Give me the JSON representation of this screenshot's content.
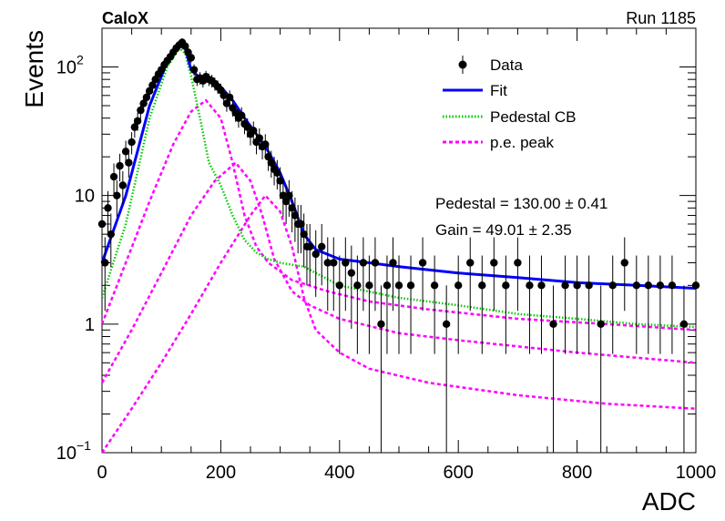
{
  "header": {
    "experiment": "CaloX",
    "run": "Run 1185"
  },
  "fit_results": {
    "pedestal": "Pedestal = 130.00 ± 0.41",
    "gain": "Gain = 49.01 ± 2.35"
  },
  "chart_data": {
    "type": "scatter",
    "title": "",
    "xlabel": "ADC",
    "ylabel": "Events",
    "xlim": [
      0,
      1000
    ],
    "ylim": [
      0.1,
      200
    ],
    "y_scale": "log",
    "x_ticks": [
      0,
      200,
      400,
      600,
      800,
      1000
    ],
    "y_ticks": [
      {
        "value": 0.1,
        "base": "10",
        "exp": "−1"
      },
      {
        "value": 1,
        "base": "1",
        "exp": ""
      },
      {
        "value": 10,
        "base": "10",
        "exp": ""
      },
      {
        "value": 100,
        "base": "10",
        "exp": "2"
      }
    ],
    "legend": {
      "placement": "top-right",
      "entries": [
        {
          "name": "Data",
          "style": "marker",
          "color": "#000000"
        },
        {
          "name": "Fit",
          "style": "solid",
          "color": "#0000ff"
        },
        {
          "name": "Pedestal CB",
          "style": "dotted",
          "color": "#00cc00"
        },
        {
          "name": "p.e. peak",
          "style": "dashed",
          "color": "#ff00ff"
        }
      ]
    },
    "data_points": {
      "x": [
        0,
        5,
        10,
        15,
        20,
        25,
        30,
        35,
        40,
        45,
        50,
        55,
        60,
        65,
        70,
        75,
        80,
        85,
        90,
        95,
        100,
        105,
        110,
        115,
        120,
        125,
        130,
        135,
        140,
        145,
        150,
        155,
        160,
        165,
        170,
        175,
        180,
        185,
        190,
        195,
        200,
        205,
        210,
        215,
        220,
        225,
        230,
        235,
        240,
        245,
        250,
        255,
        260,
        265,
        270,
        275,
        280,
        285,
        290,
        295,
        300,
        305,
        310,
        315,
        320,
        325,
        330,
        335,
        340,
        345,
        350,
        360,
        370,
        380,
        390,
        400,
        410,
        420,
        430,
        440,
        450,
        460,
        470,
        480,
        490,
        500,
        520,
        540,
        560,
        580,
        600,
        620,
        640,
        660,
        680,
        700,
        720,
        740,
        760,
        780,
        800,
        820,
        840,
        860,
        880,
        900,
        920,
        940,
        960,
        980,
        1000
      ],
      "y": [
        6,
        3,
        8,
        5,
        14,
        10,
        17,
        12,
        22,
        18,
        26,
        34,
        38,
        46,
        52,
        58,
        65,
        72,
        80,
        88,
        95,
        104,
        112,
        120,
        130,
        140,
        148,
        155,
        145,
        130,
        118,
        95,
        80,
        82,
        78,
        84,
        80,
        78,
        74,
        70,
        66,
        60,
        52,
        58,
        48,
        44,
        40,
        42,
        36,
        34,
        30,
        32,
        26,
        28,
        24,
        25,
        20,
        18,
        16,
        15,
        13,
        10,
        9,
        10,
        8,
        7,
        6,
        6,
        5,
        4,
        4,
        3.5,
        4,
        3,
        3,
        2,
        3,
        2.5,
        2,
        3,
        2,
        3,
        1,
        2,
        3,
        2,
        2,
        3,
        2,
        1,
        2,
        3,
        2,
        3,
        2,
        3,
        2,
        2,
        1,
        2,
        2,
        2,
        1,
        2,
        3,
        2,
        2,
        2,
        2,
        1,
        2
      ]
    },
    "curves": {
      "fit": {
        "x": [
          0,
          40,
          80,
          110,
          130,
          140,
          150,
          165,
          180,
          200,
          220,
          240,
          260,
          280,
          300,
          320,
          340,
          360,
          400,
          450,
          500,
          600,
          700,
          800,
          900,
          1000
        ],
        "y": [
          3,
          10,
          50,
          110,
          150,
          140,
          95,
          82,
          80,
          70,
          55,
          40,
          30,
          22,
          15,
          9,
          5,
          3.8,
          3.2,
          3,
          2.8,
          2.5,
          2.3,
          2.1,
          2,
          1.9
        ]
      },
      "pedestal": {
        "x": [
          0,
          40,
          80,
          110,
          130,
          140,
          150,
          165,
          180,
          200,
          220,
          240,
          260,
          280,
          300,
          320,
          340,
          360,
          400,
          500,
          600,
          700,
          800,
          900,
          1000
        ],
        "y": [
          1.6,
          6,
          40,
          100,
          140,
          128,
          85,
          40,
          18,
          12,
          7,
          4.5,
          3.6,
          3.2,
          3,
          2.9,
          2.8,
          2.5,
          2,
          1.6,
          1.4,
          1.2,
          1.1,
          1,
          0.95
        ]
      },
      "peaks": [
        {
          "x": [
            0,
            40,
            80,
            120,
            150,
            175,
            200,
            220,
            240,
            260,
            280,
            320,
            380,
            450,
            550,
            700,
            850,
            1000
          ],
          "y": [
            1,
            3,
            9,
            25,
            45,
            55,
            40,
            18,
            7,
            4,
            3,
            2.2,
            1.8,
            1.5,
            1.3,
            1.1,
            1,
            0.9
          ]
        },
        {
          "x": [
            0,
            50,
            100,
            150,
            190,
            225,
            250,
            270,
            290,
            320,
            350,
            400,
            500,
            600,
            800,
            1000
          ],
          "y": [
            0.35,
            0.9,
            2.5,
            7,
            13,
            18,
            13,
            7,
            3.2,
            1.8,
            1.4,
            1.1,
            0.85,
            0.75,
            0.6,
            0.5
          ]
        },
        {
          "x": [
            0,
            50,
            100,
            150,
            200,
            250,
            275,
            300,
            320,
            340,
            360,
            400,
            450,
            550,
            700,
            850,
            1000
          ],
          "y": [
            0.1,
            0.22,
            0.5,
            1.2,
            3,
            7,
            10,
            7.5,
            4,
            1.6,
            0.9,
            0.6,
            0.45,
            0.35,
            0.28,
            0.24,
            0.22
          ]
        }
      ]
    }
  }
}
